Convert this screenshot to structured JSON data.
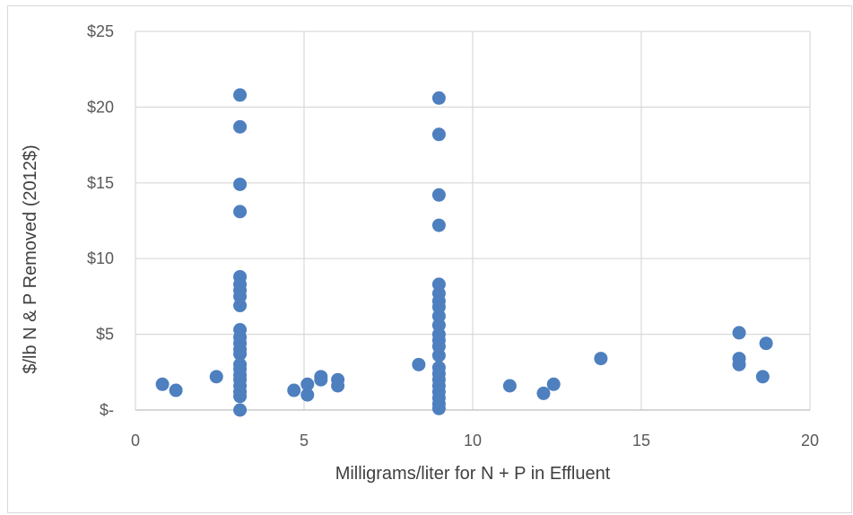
{
  "chart_data": {
    "type": "scatter",
    "title": "",
    "xlabel": "Milligrams/liter for N + P in Effluent",
    "ylabel": "$/lb N & P Removed  (2012$)",
    "xlim": [
      0,
      20
    ],
    "ylim": [
      0,
      25
    ],
    "x_ticks": [
      0,
      5,
      10,
      15,
      20
    ],
    "x_tick_labels": [
      "0",
      "5",
      "10",
      "15",
      "20"
    ],
    "y_ticks": [
      0,
      5,
      10,
      15,
      20,
      25
    ],
    "y_tick_labels": [
      "$-",
      "$5",
      "$10",
      "$15",
      "$20",
      "$25"
    ],
    "grid": true,
    "marker_color": "#4e7fbf",
    "points": [
      {
        "x": 0.8,
        "y": 1.7
      },
      {
        "x": 1.2,
        "y": 1.3
      },
      {
        "x": 2.4,
        "y": 2.2
      },
      {
        "x": 3.1,
        "y": 20.8
      },
      {
        "x": 3.1,
        "y": 18.7
      },
      {
        "x": 3.1,
        "y": 14.9
      },
      {
        "x": 3.1,
        "y": 13.1
      },
      {
        "x": 3.1,
        "y": 8.8
      },
      {
        "x": 3.1,
        "y": 8.3
      },
      {
        "x": 3.1,
        "y": 7.9
      },
      {
        "x": 3.1,
        "y": 7.5
      },
      {
        "x": 3.1,
        "y": 6.9
      },
      {
        "x": 3.1,
        "y": 5.3
      },
      {
        "x": 3.1,
        "y": 4.8
      },
      {
        "x": 3.1,
        "y": 4.4
      },
      {
        "x": 3.1,
        "y": 4.0
      },
      {
        "x": 3.1,
        "y": 3.7
      },
      {
        "x": 3.1,
        "y": 3.0
      },
      {
        "x": 3.1,
        "y": 2.7
      },
      {
        "x": 3.1,
        "y": 2.3
      },
      {
        "x": 3.1,
        "y": 2.0
      },
      {
        "x": 3.1,
        "y": 1.6
      },
      {
        "x": 3.1,
        "y": 1.2
      },
      {
        "x": 3.1,
        "y": 0.9
      },
      {
        "x": 3.1,
        "y": 0.0
      },
      {
        "x": 4.7,
        "y": 1.3
      },
      {
        "x": 5.1,
        "y": 1.7
      },
      {
        "x": 5.1,
        "y": 1.0
      },
      {
        "x": 5.5,
        "y": 2.2
      },
      {
        "x": 5.5,
        "y": 2.0
      },
      {
        "x": 6.0,
        "y": 2.0
      },
      {
        "x": 6.0,
        "y": 1.6
      },
      {
        "x": 8.4,
        "y": 3.0
      },
      {
        "x": 9.0,
        "y": 20.6
      },
      {
        "x": 9.0,
        "y": 18.2
      },
      {
        "x": 9.0,
        "y": 14.2
      },
      {
        "x": 9.0,
        "y": 12.2
      },
      {
        "x": 9.0,
        "y": 8.3
      },
      {
        "x": 9.0,
        "y": 7.7
      },
      {
        "x": 9.0,
        "y": 7.2
      },
      {
        "x": 9.0,
        "y": 6.8
      },
      {
        "x": 9.0,
        "y": 6.2
      },
      {
        "x": 9.0,
        "y": 5.6
      },
      {
        "x": 9.0,
        "y": 5.0
      },
      {
        "x": 9.0,
        "y": 4.6
      },
      {
        "x": 9.0,
        "y": 4.2
      },
      {
        "x": 9.0,
        "y": 3.6
      },
      {
        "x": 9.0,
        "y": 2.8
      },
      {
        "x": 9.0,
        "y": 2.4
      },
      {
        "x": 9.0,
        "y": 2.0
      },
      {
        "x": 9.0,
        "y": 1.6
      },
      {
        "x": 9.0,
        "y": 1.2
      },
      {
        "x": 9.0,
        "y": 0.8
      },
      {
        "x": 9.0,
        "y": 0.4
      },
      {
        "x": 9.0,
        "y": 0.1
      },
      {
        "x": 11.1,
        "y": 1.6
      },
      {
        "x": 12.1,
        "y": 1.1
      },
      {
        "x": 12.4,
        "y": 1.7
      },
      {
        "x": 13.8,
        "y": 3.4
      },
      {
        "x": 17.9,
        "y": 5.1
      },
      {
        "x": 17.9,
        "y": 3.4
      },
      {
        "x": 17.9,
        "y": 3.0
      },
      {
        "x": 18.6,
        "y": 2.2
      },
      {
        "x": 18.7,
        "y": 4.4
      }
    ]
  }
}
